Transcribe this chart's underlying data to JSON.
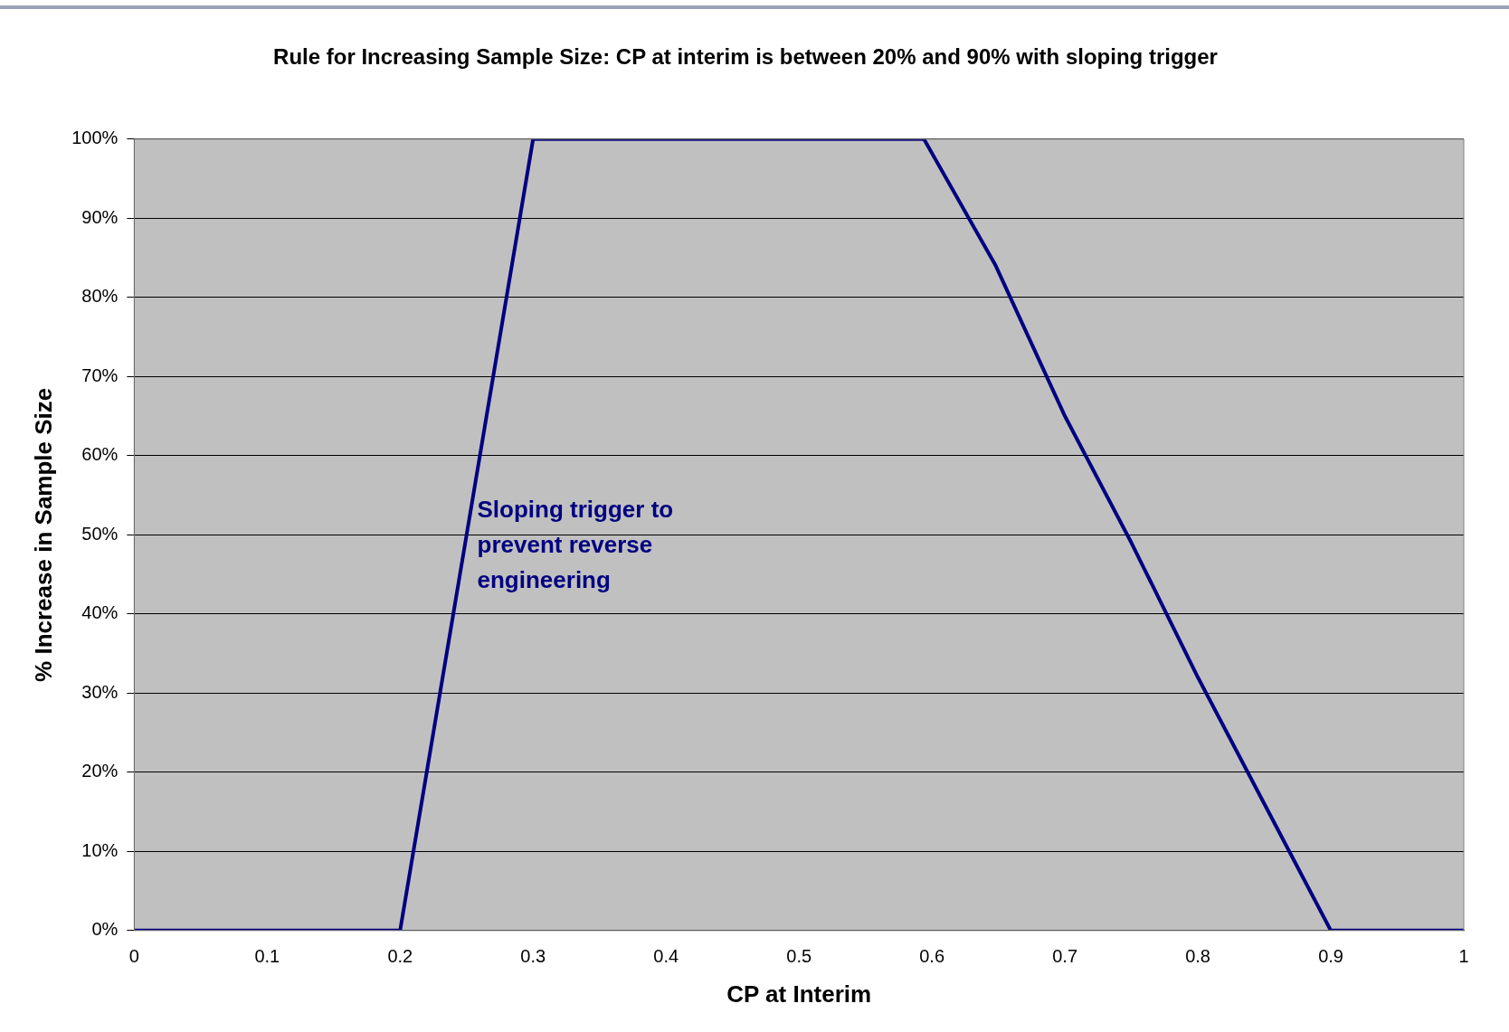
{
  "chart_data": {
    "type": "line",
    "title": "Rule for Increasing Sample Size: CP at interim is between 20% and 90% with sloping trigger",
    "xlabel": "CP at Interim",
    "ylabel": "% Increase in Sample Size",
    "x": [
      0,
      0.2,
      0.3,
      0.594,
      0.648,
      0.7,
      0.75,
      0.8,
      0.85,
      0.9,
      1
    ],
    "series": [
      {
        "color": "#000080",
        "values": [
          0,
          0,
          100,
          100,
          84,
          65,
          49,
          32,
          16,
          0,
          0
        ]
      }
    ],
    "xlim": [
      0,
      1
    ],
    "xticks": [
      0,
      0.1,
      0.2,
      0.3,
      0.4,
      0.5,
      0.6,
      0.7,
      0.8,
      0.9,
      1
    ],
    "ylim": [
      0,
      100
    ],
    "yticks": [
      {
        "value": 0,
        "label": "0%"
      },
      {
        "value": 10,
        "label": "10%"
      },
      {
        "value": 20,
        "label": "20%"
      },
      {
        "value": 30,
        "label": "30%"
      },
      {
        "value": 40,
        "label": "40%"
      },
      {
        "value": 50,
        "label": "50%"
      },
      {
        "value": 60,
        "label": "60%"
      },
      {
        "value": 70,
        "label": "70%"
      },
      {
        "value": 80,
        "label": "80%"
      },
      {
        "value": 90,
        "label": "90%"
      },
      {
        "value": 100,
        "label": "100%"
      }
    ],
    "grid": "y",
    "legend": false,
    "marker": "none",
    "line_style": "solid",
    "annotations": [
      "Sloping trigger to prevent reverse engineering"
    ]
  }
}
